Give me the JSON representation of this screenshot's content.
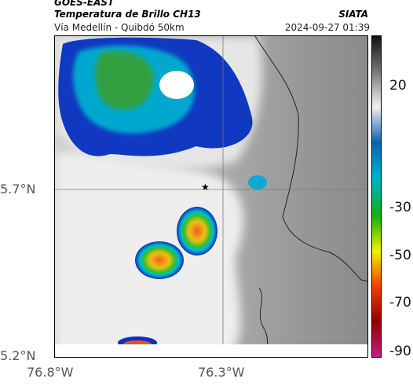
{
  "header": {
    "satellite": "GOES-EAST",
    "product": "Temperatura de Brillo CH13",
    "organization": "SIATA",
    "location": "Vía Medellín - Quibdó 50km",
    "datetime": "2024-09-27 01:39"
  },
  "axes": {
    "lat_labels": [
      "5.7°N",
      "5.2°N"
    ],
    "lon_labels": [
      "76.8°W",
      "76.3°W"
    ]
  },
  "colorbar": {
    "labels": [
      "20",
      "-30",
      "-50",
      "-70",
      "-90"
    ],
    "stops": [
      "#111111",
      "#777777",
      "#f2f2f2",
      "#1060b0",
      "#00b0d0",
      "#10b010",
      "#f0f000",
      "#f04000",
      "#900000",
      "#c02080"
    ]
  },
  "marker": {
    "label": "★"
  },
  "colors": {
    "deep_convection_blue": "#1030c0",
    "cloud_green": "#30a040",
    "core_orange": "#f07020",
    "land_gray": "#9a9a9a",
    "bright_cloud": "#f4f4f4"
  }
}
